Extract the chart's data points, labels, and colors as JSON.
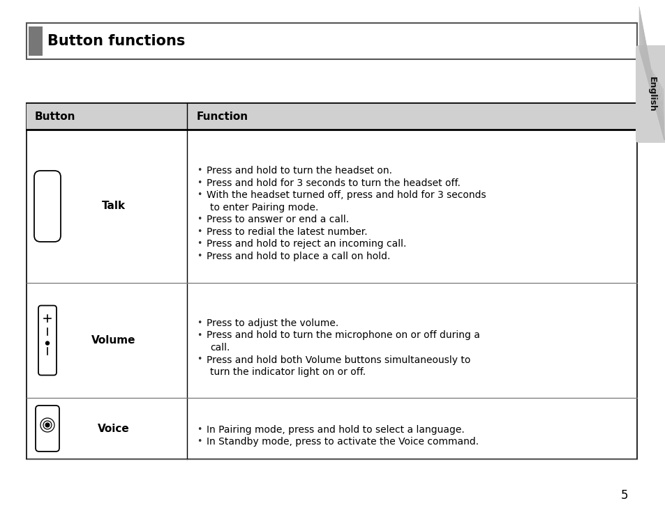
{
  "title": "Button functions",
  "header_col1": "Button",
  "header_col2": "Function",
  "tab_label": "English",
  "page_number": "5",
  "background_color": "#ffffff",
  "rows": [
    {
      "button_label": "Talk",
      "functions": [
        "Press and hold to turn the headset on.",
        "Press and hold for 3 seconds to turn the headset off.",
        "With the headset turned off, press and hold for 3 seconds",
        "  to enter Pairing mode.",
        "Press to answer or end a call.",
        "Press to redial the latest number.",
        "Press and hold to reject an incoming call.",
        "Press and hold to place a call on hold."
      ],
      "bullets": [
        true,
        true,
        true,
        false,
        true,
        true,
        true,
        true
      ]
    },
    {
      "button_label": "Volume",
      "functions": [
        "Press to adjust the volume.",
        "Press and hold to turn the microphone on or off during a",
        "  call.",
        "Press and hold both Volume buttons simultaneously to",
        "  turn the indicator light on or off."
      ],
      "bullets": [
        true,
        true,
        false,
        true,
        false
      ]
    },
    {
      "button_label": "Voice",
      "functions": [
        "In Pairing mode, press and hold to select a language.",
        "In Standby mode, press to activate the Voice command."
      ],
      "bullets": [
        true,
        true
      ]
    }
  ]
}
